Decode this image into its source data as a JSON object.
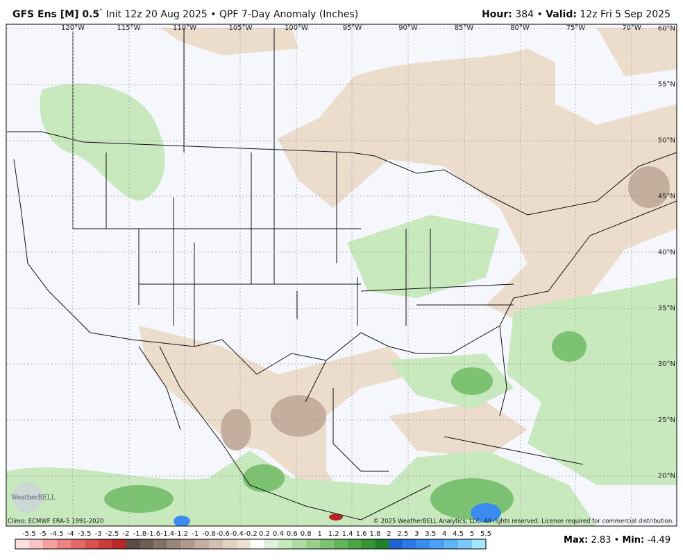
{
  "header": {
    "model": "GFS Ens [M] 0.5",
    "degree": "°",
    "init": "Init 12z 20 Aug 2025",
    "bullet": "•",
    "product": "QPF 7-Day Anomaly (Inches)",
    "hour_label": "Hour:",
    "hour": "384",
    "valid_label": "Valid:",
    "valid": "12z Fri 5 Sep 2025"
  },
  "map": {
    "lon_labels": [
      "120°W",
      "115°W",
      "110°W",
      "105°W",
      "100°W",
      "95°W",
      "90°W",
      "85°W",
      "80°W",
      "75°W",
      "70°W"
    ],
    "lat_labels": [
      "60°N",
      "55°N",
      "50°N",
      "45°N",
      "40°N",
      "35°N",
      "30°N",
      "25°N",
      "20°N"
    ],
    "climo": "Climo: ECMWF ERA-5 1991-2020",
    "copyright": "© 2025 WeatherBELL Analytics, LLC. All rights reserved. License required for commercial distribution.",
    "logo": "WeatherBELL"
  },
  "colorbar": {
    "labels": [
      "-5.5",
      "-5",
      "-4.5",
      "-4",
      "-3.5",
      "-3",
      "-2.5",
      "-2",
      "-1.8",
      "-1.6",
      "-1.4",
      "-1.2",
      "-1",
      "-0.8",
      "-0.6",
      "-0.4",
      "-0.2",
      "0.2",
      "0.4",
      "0.6",
      "0.8",
      "1",
      "1.2",
      "1.4",
      "1.6",
      "1.8",
      "2",
      "2.5",
      "3",
      "3.5",
      "4",
      "4.5",
      "5",
      "5.5"
    ],
    "colors": [
      "#fde0e0",
      "#fbc4c4",
      "#f4a0a0",
      "#ec8484",
      "#e26868",
      "#d85050",
      "#cc3a3a",
      "#b82828",
      "#5a4a44",
      "#6e5c54",
      "#857067",
      "#9c857a",
      "#b09a8c",
      "#c4ae9e",
      "#d4bfae",
      "#e2d0c0",
      "#eddfd2",
      "#ffffff",
      "#dff0d8",
      "#c8e8bd",
      "#b0dca4",
      "#98d08a",
      "#7dc272",
      "#63b45c",
      "#4aa448",
      "#359438",
      "#1f7f2a",
      "#1c64d0",
      "#2a78e6",
      "#3a8cf0",
      "#4aa0f4",
      "#60b4f8",
      "#7cc8fb",
      "#a6e6fb"
    ]
  },
  "stats": {
    "max_label": "Max:",
    "max": 2.83,
    "bullet": "•",
    "min_label": "Min:",
    "min": -4.49
  }
}
